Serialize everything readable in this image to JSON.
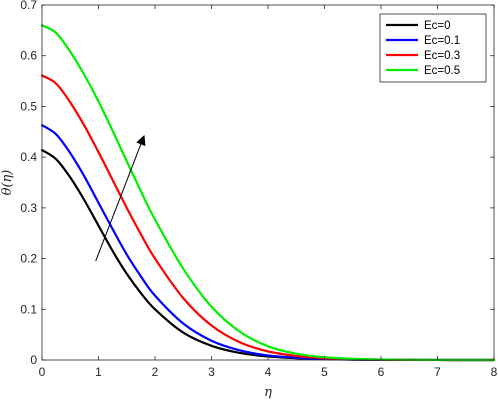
{
  "chart_data": {
    "type": "line",
    "title": "",
    "xlabel": "η",
    "ylabel": "θ(η)",
    "xlim": [
      0,
      8
    ],
    "ylim": [
      0,
      0.7
    ],
    "xticks": [
      "0",
      "1",
      "2",
      "3",
      "4",
      "5",
      "6",
      "7",
      "8"
    ],
    "yticks": [
      "0",
      "0.1",
      "0.2",
      "0.3",
      "0.4",
      "0.5",
      "0.6",
      "0.7"
    ],
    "grid": false,
    "legend_position": "top-right",
    "x": [
      0,
      0.25,
      0.5,
      0.75,
      1.0,
      1.25,
      1.5,
      1.75,
      2.0,
      2.5,
      3.0,
      3.5,
      4.0,
      4.5,
      5.0,
      5.5,
      6.0,
      6.5,
      7.0,
      7.5,
      8.0
    ],
    "series": [
      {
        "name": "Ec=0",
        "color": "#000000",
        "values": [
          0.414,
          0.396,
          0.36,
          0.315,
          0.265,
          0.215,
          0.17,
          0.132,
          0.1,
          0.054,
          0.028,
          0.014,
          0.007,
          0.0035,
          0.0017,
          0.0008,
          0.0004,
          0.0002,
          0.0001,
          5e-05,
          0.0
        ]
      },
      {
        "name": "Ec=0.1",
        "color": "#0000ff",
        "values": [
          0.463,
          0.445,
          0.408,
          0.362,
          0.31,
          0.258,
          0.208,
          0.165,
          0.127,
          0.072,
          0.038,
          0.019,
          0.009,
          0.0045,
          0.0021,
          0.001,
          0.0005,
          0.0002,
          0.0001,
          5e-05,
          0.0
        ]
      },
      {
        "name": "Ec=0.3",
        "color": "#ff0000",
        "values": [
          0.561,
          0.545,
          0.508,
          0.462,
          0.41,
          0.355,
          0.3,
          0.248,
          0.2,
          0.122,
          0.068,
          0.035,
          0.017,
          0.008,
          0.0037,
          0.0017,
          0.0008,
          0.0003,
          0.0001,
          5e-05,
          0.0
        ]
      },
      {
        "name": "Ec=0.5",
        "color": "#00ee00",
        "values": [
          0.66,
          0.645,
          0.608,
          0.562,
          0.51,
          0.452,
          0.392,
          0.333,
          0.277,
          0.18,
          0.105,
          0.056,
          0.027,
          0.0125,
          0.0055,
          0.0024,
          0.001,
          0.0004,
          0.00015,
          5e-05,
          0.0
        ]
      }
    ],
    "annotation": {
      "type": "arrow",
      "from": [
        0.95,
        0.195
      ],
      "to": [
        1.8,
        0.44
      ],
      "color": "#000000"
    }
  }
}
